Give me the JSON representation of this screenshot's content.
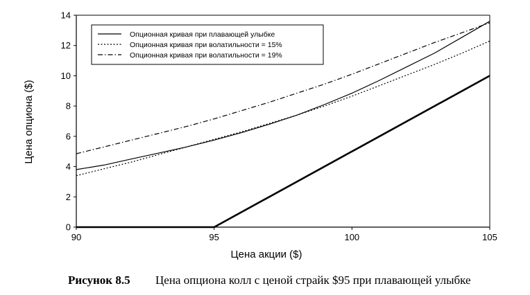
{
  "chart_data": {
    "type": "line",
    "xlabel": "Цена акции ($)",
    "ylabel": "Цена опциона ($)",
    "xlim": [
      90,
      105
    ],
    "ylim": [
      0,
      14
    ],
    "xticks": [
      "90",
      "95",
      "100",
      "105"
    ],
    "yticks": [
      "0",
      "2",
      "4",
      "6",
      "8",
      "10",
      "12",
      "14"
    ],
    "grid": false,
    "legend_position": "top-left",
    "series": [
      {
        "name": "Опционная кривая при плавающей улыбке",
        "style": "solid",
        "color": "#000000",
        "x": [
          90,
          91,
          92,
          93,
          94,
          95,
          96,
          97,
          98,
          99,
          100,
          101,
          102,
          103,
          104,
          105
        ],
        "y": [
          3.8,
          4.1,
          4.5,
          4.9,
          5.3,
          5.75,
          6.25,
          6.8,
          7.4,
          8.1,
          8.85,
          9.7,
          10.6,
          11.5,
          12.55,
          13.6
        ]
      },
      {
        "name": "Опционная кривая при волатильности = 15%",
        "style": "dotted",
        "color": "#000000",
        "x": [
          90,
          91,
          92,
          93,
          94,
          95,
          96,
          97,
          98,
          99,
          100,
          101,
          102,
          103,
          104,
          105
        ],
        "y": [
          3.4,
          3.85,
          4.3,
          4.8,
          5.3,
          5.8,
          6.3,
          6.85,
          7.4,
          8.0,
          8.65,
          9.35,
          10.05,
          10.75,
          11.5,
          12.3
        ]
      },
      {
        "name": "Опционная кривая при волатильности = 19%",
        "style": "dash-dot",
        "color": "#000000",
        "x": [
          90,
          91,
          92,
          93,
          94,
          95,
          96,
          97,
          98,
          99,
          100,
          101,
          102,
          103,
          104,
          105
        ],
        "y": [
          4.85,
          5.3,
          5.75,
          6.2,
          6.65,
          7.15,
          7.7,
          8.25,
          8.85,
          9.45,
          10.1,
          10.8,
          11.5,
          12.2,
          12.85,
          13.5
        ]
      },
      {
        "name": "",
        "style": "solid-thick",
        "color": "#000000",
        "x": [
          90,
          95,
          105
        ],
        "y": [
          0,
          0,
          10
        ]
      }
    ]
  },
  "caption": {
    "label": "Рисунок 8.5",
    "text": "Цена опциона колл с ценой страйк $95 при плавающей улыбке"
  }
}
